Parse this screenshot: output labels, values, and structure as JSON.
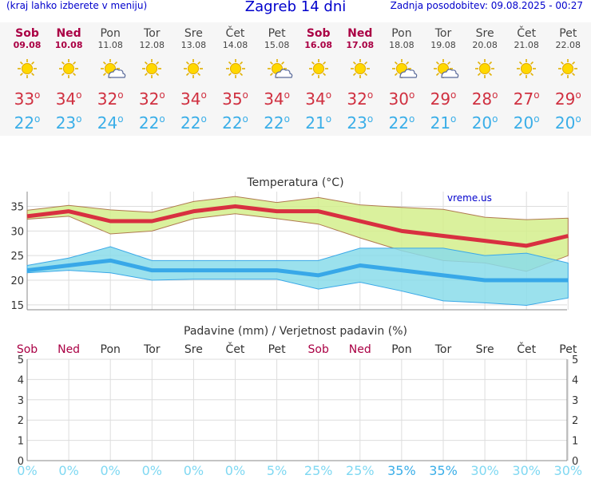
{
  "header": {
    "location_hint": "(kraj lahko izberete v meniju)",
    "title": "Zagreb 14 dni",
    "updated": "Zadnja posodobitev: 09.08.2025 - 00:27"
  },
  "days": [
    {
      "name": "Sob",
      "date": "09.08",
      "weekend": true,
      "icon": "sun-icon",
      "max": "33",
      "min": "22"
    },
    {
      "name": "Ned",
      "date": "10.08",
      "weekend": true,
      "icon": "sun-icon",
      "max": "34",
      "min": "23"
    },
    {
      "name": "Pon",
      "date": "11.08",
      "weekend": false,
      "icon": "sun-cloud-icon",
      "max": "32",
      "min": "24"
    },
    {
      "name": "Tor",
      "date": "12.08",
      "weekend": false,
      "icon": "sun-icon",
      "max": "32",
      "min": "22"
    },
    {
      "name": "Sre",
      "date": "13.08",
      "weekend": false,
      "icon": "sun-icon",
      "max": "34",
      "min": "22"
    },
    {
      "name": "Čet",
      "date": "14.08",
      "weekend": false,
      "icon": "sun-icon",
      "max": "35",
      "min": "22"
    },
    {
      "name": "Pet",
      "date": "15.08",
      "weekend": false,
      "icon": "sun-cloud-icon",
      "max": "34",
      "min": "22"
    },
    {
      "name": "Sob",
      "date": "16.08",
      "weekend": true,
      "icon": "sun-icon",
      "max": "34",
      "min": "21"
    },
    {
      "name": "Ned",
      "date": "17.08",
      "weekend": true,
      "icon": "sun-icon",
      "max": "32",
      "min": "23"
    },
    {
      "name": "Pon",
      "date": "18.08",
      "weekend": false,
      "icon": "sun-cloud-icon",
      "max": "30",
      "min": "22"
    },
    {
      "name": "Tor",
      "date": "19.08",
      "weekend": false,
      "icon": "sun-cloud-icon",
      "max": "29",
      "min": "21"
    },
    {
      "name": "Sre",
      "date": "20.08",
      "weekend": false,
      "icon": "sun-icon",
      "max": "28",
      "min": "20"
    },
    {
      "name": "Čet",
      "date": "21.08",
      "weekend": false,
      "icon": "sun-icon",
      "max": "27",
      "min": "20"
    },
    {
      "name": "Pet",
      "date": "22.08",
      "weekend": false,
      "icon": "sun-icon",
      "max": "29",
      "min": "20"
    }
  ],
  "degree": "o",
  "chart_data": [
    {
      "type": "line",
      "title": "Temperatura (°C)",
      "credit": "vreme.us",
      "x": [
        "Sob",
        "Ned",
        "Pon",
        "Tor",
        "Sre",
        "Čet",
        "Pet",
        "Sob",
        "Ned",
        "Pon",
        "Tor",
        "Sre",
        "Čet",
        "Pet"
      ],
      "ylim": [
        14,
        38
      ],
      "yticks": [
        15,
        20,
        25,
        30,
        35
      ],
      "grid": true,
      "series": [
        {
          "role": "max",
          "color": "#d83040",
          "values": [
            33,
            34,
            32,
            32,
            34,
            35,
            34,
            34,
            32,
            30,
            29,
            28,
            27,
            29
          ]
        },
        {
          "role": "min",
          "color": "#38a8e8",
          "values": [
            22,
            23,
            24,
            22,
            22,
            22,
            22,
            21,
            23,
            22,
            21,
            20,
            20,
            20
          ]
        },
        {
          "role": "max-band-upper",
          "color": "#d4ee8c",
          "values": [
            34.2,
            35.2,
            34.3,
            33.8,
            36,
            37,
            35.8,
            36.8,
            35.3,
            34.8,
            34.4,
            32.8,
            32.3,
            32.6
          ]
        },
        {
          "role": "max-band-lower",
          "color": "#d4ee8c",
          "values": [
            32.4,
            33,
            29.4,
            30,
            32.5,
            33.5,
            32.5,
            31.4,
            28.6,
            26,
            24,
            23.5,
            21.8,
            25
          ]
        },
        {
          "role": "min-band-upper",
          "color": "#8adcea",
          "values": [
            23,
            24.5,
            26.8,
            24,
            24,
            24,
            24,
            24,
            26.5,
            26.5,
            26.5,
            25,
            25.5,
            23.5
          ]
        },
        {
          "role": "min-band-lower",
          "color": "#8adcea",
          "values": [
            21.5,
            22,
            21.5,
            20,
            20.2,
            20.2,
            20.2,
            18.2,
            19.6,
            17.8,
            15.8,
            15.4,
            14.9,
            16.4
          ]
        }
      ]
    },
    {
      "type": "bar",
      "title": "Padavine (mm) / Verjetnost padavin (%)",
      "x": [
        "Sob",
        "Ned",
        "Pon",
        "Tor",
        "Sre",
        "Čet",
        "Pet",
        "Sob",
        "Ned",
        "Pon",
        "Tor",
        "Sre",
        "Čet",
        "Pet"
      ],
      "weekend": [
        true,
        true,
        false,
        false,
        false,
        false,
        false,
        true,
        true,
        false,
        false,
        false,
        false,
        false
      ],
      "ylim": [
        0,
        5
      ],
      "yticks": [
        "0",
        "1",
        "2",
        "3",
        "4",
        "5"
      ],
      "precip_mm": [
        0,
        0,
        0,
        0,
        0,
        0,
        0,
        0,
        0,
        0,
        0,
        0,
        0,
        0
      ],
      "probability": [
        "0%",
        "0%",
        "0%",
        "0%",
        "0%",
        "0%",
        "5%",
        "25%",
        "25%",
        "35%",
        "35%",
        "30%",
        "30%",
        "30%"
      ],
      "probability_values": [
        0,
        0,
        0,
        0,
        0,
        0,
        5,
        25,
        25,
        35,
        35,
        30,
        30,
        30
      ]
    }
  ]
}
